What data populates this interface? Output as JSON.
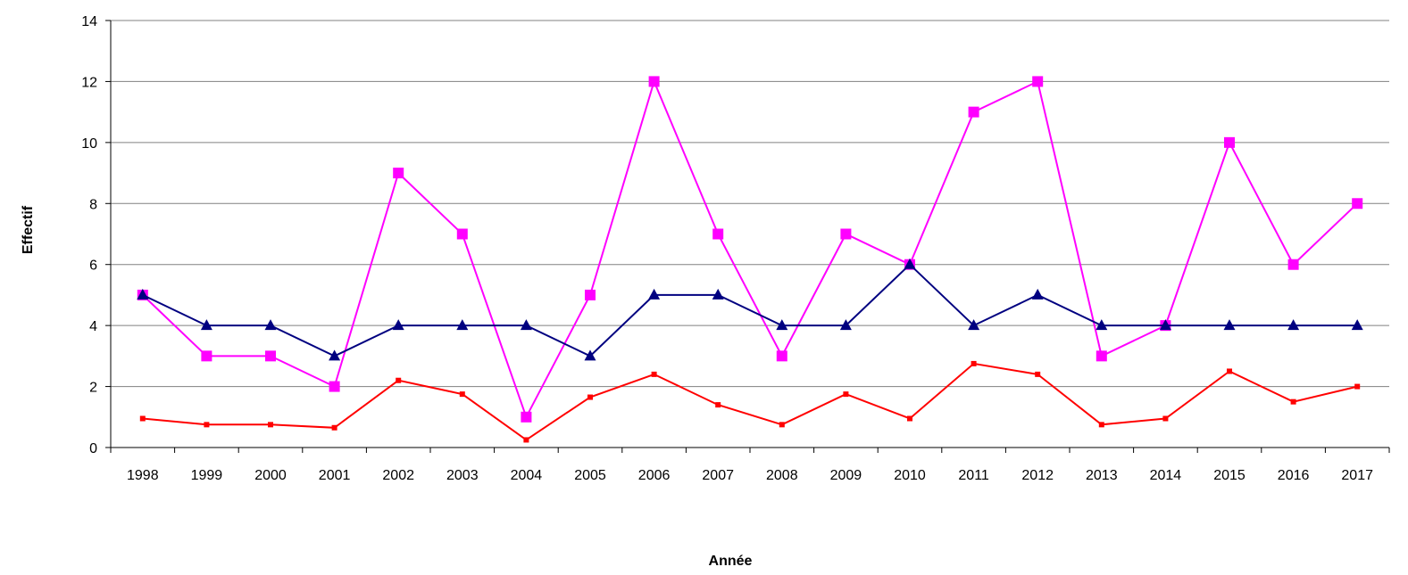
{
  "chart_data": {
    "type": "line",
    "title": "",
    "xlabel": "Année",
    "ylabel": "Effectif",
    "categories": [
      "1998",
      "1999",
      "2000",
      "2001",
      "2002",
      "2003",
      "2004",
      "2005",
      "2006",
      "2007",
      "2008",
      "2009",
      "2010",
      "2011",
      "2012",
      "2013",
      "2014",
      "2015",
      "2016",
      "2017"
    ],
    "ylim": [
      0,
      14
    ],
    "yticks": [
      0,
      2,
      4,
      6,
      8,
      10,
      12,
      14
    ],
    "grid": true,
    "legend": "none",
    "series": [
      {
        "color": "#ff00ff",
        "marker": "square",
        "values": [
          5,
          3,
          3,
          2,
          9,
          7,
          1,
          5,
          12,
          7,
          3,
          7,
          6,
          11,
          12,
          3,
          4,
          10,
          6,
          8
        ]
      },
      {
        "color": "#000080",
        "marker": "triangle",
        "values": [
          5,
          4,
          4,
          3,
          4,
          4,
          4,
          3,
          5,
          5,
          4,
          4,
          6,
          4,
          5,
          4,
          4,
          4,
          4,
          4
        ]
      },
      {
        "color": "#ff0000",
        "marker": "small-square",
        "values": [
          0.95,
          0.75,
          0.75,
          0.65,
          2.2,
          1.75,
          0.25,
          1.65,
          2.4,
          1.4,
          0.75,
          1.75,
          0.95,
          2.75,
          2.4,
          0.75,
          0.95,
          2.5,
          1.5,
          2.0
        ]
      }
    ]
  }
}
